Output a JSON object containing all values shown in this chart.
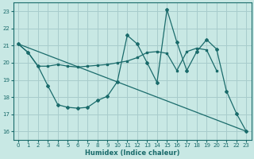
{
  "xlabel": "Humidex (Indice chaleur)",
  "background_color": "#c8e8e4",
  "grid_color": "#a8cccc",
  "line_color": "#1a6b6b",
  "xlim": [
    -0.5,
    23.5
  ],
  "ylim": [
    15.5,
    23.5
  ],
  "yticks": [
    16,
    17,
    18,
    19,
    20,
    21,
    22,
    23
  ],
  "xticks": [
    0,
    1,
    2,
    3,
    4,
    5,
    6,
    7,
    8,
    9,
    10,
    11,
    12,
    13,
    14,
    15,
    16,
    17,
    18,
    19,
    20,
    21,
    22,
    23
  ],
  "series1_x": [
    0,
    1,
    2,
    3,
    4,
    5,
    6,
    7,
    8,
    9,
    10,
    11,
    12,
    13,
    14,
    15,
    16,
    17,
    18,
    19,
    20
  ],
  "series1_y": [
    21.1,
    20.6,
    19.8,
    19.8,
    19.9,
    19.8,
    19.75,
    19.8,
    19.85,
    19.9,
    20.0,
    20.1,
    20.3,
    20.6,
    20.65,
    20.55,
    19.55,
    20.65,
    20.85,
    20.75,
    19.55
  ],
  "series2_x": [
    0,
    1,
    2,
    3,
    4,
    5,
    6,
    7,
    8,
    9,
    10,
    11,
    12,
    13,
    14,
    15,
    16,
    17,
    18,
    19,
    20,
    21,
    22,
    23
  ],
  "series2_y": [
    21.1,
    20.6,
    19.8,
    18.65,
    17.55,
    17.4,
    17.35,
    17.4,
    17.8,
    18.05,
    18.9,
    21.6,
    21.1,
    20.0,
    18.85,
    23.1,
    21.2,
    19.55,
    20.65,
    21.35,
    20.8,
    18.35,
    17.05,
    16.0
  ],
  "series3_x": [
    0,
    23
  ],
  "series3_y": [
    21.1,
    16.0
  ]
}
